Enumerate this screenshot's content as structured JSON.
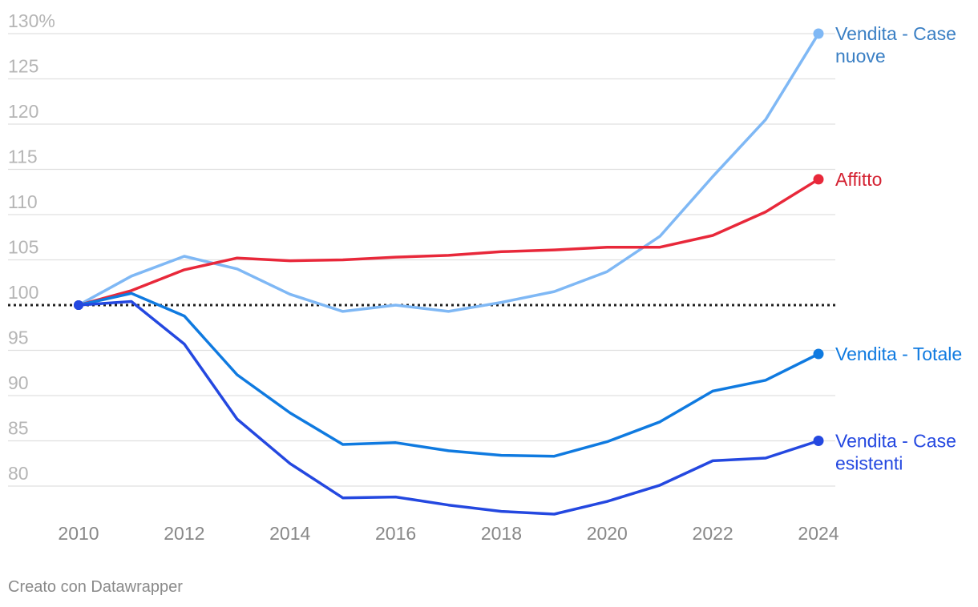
{
  "chart_data": {
    "type": "line",
    "x": [
      2010,
      2011,
      2012,
      2013,
      2014,
      2015,
      2016,
      2017,
      2018,
      2019,
      2020,
      2021,
      2022,
      2023,
      2024
    ],
    "ylim": [
      75,
      130
    ],
    "y_ticks": [
      80,
      85,
      90,
      95,
      100,
      105,
      110,
      115,
      120,
      125,
      130
    ],
    "y_tick_labels": [
      "80",
      "85",
      "90",
      "95",
      "100",
      "105",
      "110",
      "115",
      "120",
      "125",
      "130%"
    ],
    "x_ticks": [
      2010,
      2012,
      2014,
      2016,
      2018,
      2020,
      2022,
      2024
    ],
    "x_tick_labels": [
      "2010",
      "2012",
      "2014",
      "2016",
      "2018",
      "2020",
      "2022",
      "2024"
    ],
    "baseline": 100,
    "grid": true,
    "legend": "inline labels at line ends (right)",
    "series": [
      {
        "name": "Vendita - Case nuove",
        "label_lines": [
          "Vendita - Case",
          "nuove"
        ],
        "color": "#7fb8f5",
        "label_color": "#3a7fc4",
        "values": [
          100,
          103.2,
          105.4,
          104.0,
          101.2,
          99.3,
          100.0,
          99.3,
          100.3,
          101.5,
          103.7,
          107.6,
          114.2,
          120.5,
          130.0
        ]
      },
      {
        "name": "Affitto",
        "label_lines": [
          "Affitto"
        ],
        "color": "#e8283a",
        "label_color": "#d42232",
        "values": [
          100,
          101.6,
          103.9,
          105.2,
          104.9,
          105.0,
          105.3,
          105.5,
          105.9,
          106.1,
          106.4,
          106.4,
          107.7,
          110.3,
          113.9
        ]
      },
      {
        "name": "Vendita - Totale",
        "label_lines": [
          "Vendita - Totale"
        ],
        "color": "#0f7ae0",
        "label_color": "#0f7ae0",
        "values": [
          100,
          101.3,
          98.8,
          92.3,
          88.1,
          84.6,
          84.8,
          83.9,
          83.4,
          83.3,
          84.9,
          87.1,
          90.5,
          91.7,
          94.6
        ]
      },
      {
        "name": "Vendita - Case esistenti",
        "label_lines": [
          "Vendita - Case",
          "esistenti"
        ],
        "color": "#2448e0",
        "label_color": "#2448e0",
        "values": [
          100,
          100.4,
          95.7,
          87.4,
          82.5,
          78.7,
          78.8,
          77.9,
          77.2,
          76.9,
          78.3,
          80.1,
          82.8,
          83.1,
          85.0
        ]
      }
    ]
  },
  "credit": "Creato con Datawrapper"
}
